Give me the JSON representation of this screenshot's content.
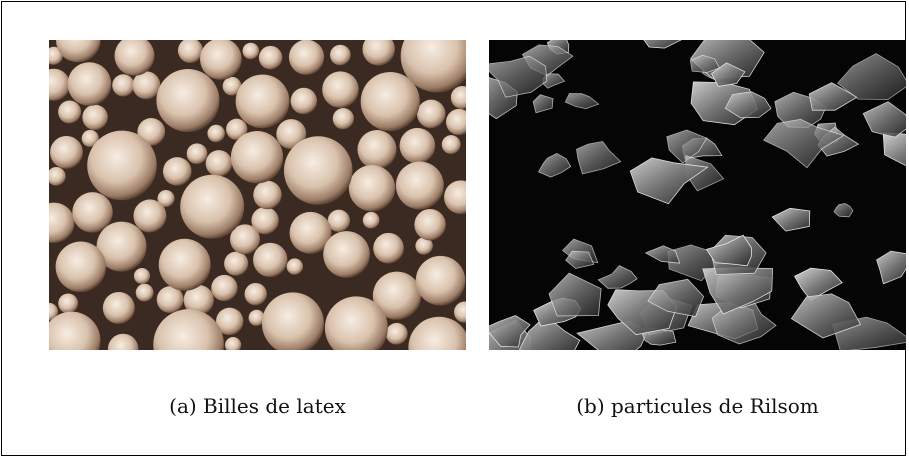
{
  "figure": {
    "subfigures": [
      {
        "label": "(a)",
        "caption": "Billes de latex",
        "image": "latex-spheres-micrograph"
      },
      {
        "label": "(b)",
        "caption": "particules de Rilsom",
        "image": "rilsom-particles-micrograph"
      }
    ]
  }
}
